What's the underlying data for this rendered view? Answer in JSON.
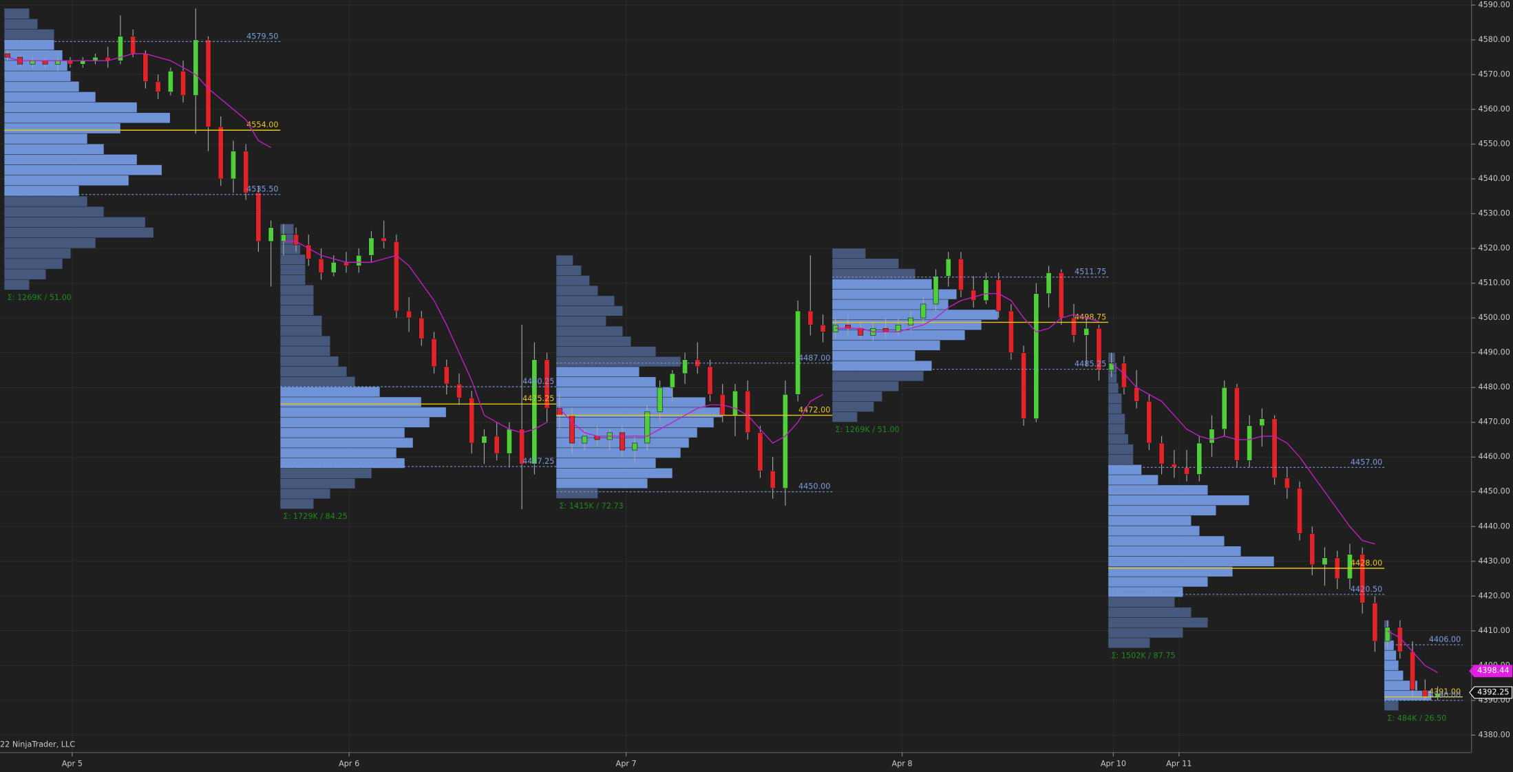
{
  "chart_data": {
    "type": "candlestick",
    "copyright": "22 NinjaTrader, LLC",
    "xlim": [
      -0.6,
      116.7
    ],
    "ylim": [
      4375,
      4591.4
    ],
    "yticks": [
      {
        "value": 4380,
        "label": "4380.00"
      },
      {
        "value": 4390,
        "label": "4390.00"
      },
      {
        "value": 4400,
        "label": "4400.00"
      },
      {
        "value": 4410,
        "label": "4410.00"
      },
      {
        "value": 4420,
        "label": "4420.00"
      },
      {
        "value": 4430,
        "label": "4430.00"
      },
      {
        "value": 4440,
        "label": "4440.00"
      },
      {
        "value": 4450,
        "label": "4450.00"
      },
      {
        "value": 4460,
        "label": "4460.00"
      },
      {
        "value": 4470,
        "label": "4470.00"
      },
      {
        "value": 4480,
        "label": "4480.00"
      },
      {
        "value": 4490,
        "label": "4490.00"
      },
      {
        "value": 4500,
        "label": "4500.00"
      },
      {
        "value": 4510,
        "label": "4510.00"
      },
      {
        "value": 4520,
        "label": "4520.00"
      },
      {
        "value": 4530,
        "label": "4530.00"
      },
      {
        "value": 4540,
        "label": "4540.00"
      },
      {
        "value": 4550,
        "label": "4550.00"
      },
      {
        "value": 4560,
        "label": "4560.00"
      },
      {
        "value": 4570,
        "label": "4570.00"
      },
      {
        "value": 4580,
        "label": "4580.00"
      },
      {
        "value": 4590,
        "label": "4590.00"
      }
    ],
    "xticks": [
      {
        "value": 5.15,
        "label": "Apr 5"
      },
      {
        "value": 27.23,
        "label": "Apr 6"
      },
      {
        "value": 49.31,
        "label": "Apr 7"
      },
      {
        "value": 71.31,
        "label": "Apr 8"
      },
      {
        "value": 88.15,
        "label": "Apr 10"
      },
      {
        "value": 93.38,
        "label": "Apr 11"
      }
    ],
    "grid": true,
    "up_color": "#4fcf3a",
    "down_color": "#e0242a",
    "wick_color": "#a8a8a8",
    "candles": [
      [
        4576,
        4577,
        4574,
        4575
      ],
      [
        4575,
        4576,
        4572,
        4573
      ],
      [
        4573,
        4575,
        4572,
        4574
      ],
      [
        4574,
        4575,
        4572,
        4573
      ],
      [
        4573,
        4575,
        4571,
        4574
      ],
      [
        4574,
        4575,
        4572,
        4573
      ],
      [
        4573,
        4575,
        4572,
        4574
      ],
      [
        4574,
        4576,
        4573,
        4575
      ],
      [
        4575,
        4578,
        4572,
        4574
      ],
      [
        4574,
        4587,
        4573,
        4581
      ],
      [
        4581,
        4583,
        4575,
        4576
      ],
      [
        4576,
        4577,
        4566,
        4568
      ],
      [
        4568,
        4570,
        4563,
        4565
      ],
      [
        4565,
        4572,
        4564,
        4571
      ],
      [
        4571,
        4574,
        4562,
        4564
      ],
      [
        4564,
        4589,
        4553,
        4580
      ],
      [
        4580,
        4581,
        4548,
        4555
      ],
      [
        4555,
        4558,
        4538,
        4540
      ],
      [
        4540,
        4551,
        4536,
        4548
      ],
      [
        4548,
        4550,
        4534,
        4536
      ],
      [
        4536,
        4538,
        4519,
        4522
      ],
      [
        4522,
        4528,
        4509,
        4526
      ],
      [
        4522,
        4527,
        4518,
        4524
      ],
      [
        4524,
        4526,
        4519,
        4521
      ],
      [
        4521,
        4524,
        4515,
        4517
      ],
      [
        4517,
        4520,
        4511,
        4513
      ],
      [
        4513,
        4518,
        4512,
        4516
      ],
      [
        4516,
        4519,
        4513,
        4515
      ],
      [
        4515,
        4520,
        4513,
        4518
      ],
      [
        4518,
        4525,
        4516,
        4523
      ],
      [
        4523,
        4528,
        4520,
        4522
      ],
      [
        4522,
        4524,
        4500,
        4502
      ],
      [
        4502,
        4506,
        4496,
        4500
      ],
      [
        4500,
        4502,
        4492,
        4494
      ],
      [
        4494,
        4496,
        4484,
        4486
      ],
      [
        4486,
        4488,
        4478,
        4481
      ],
      [
        4481,
        4484,
        4475,
        4477
      ],
      [
        4477,
        4479,
        4461,
        4464
      ],
      [
        4464,
        4468,
        4458,
        4466
      ],
      [
        4466,
        4470,
        4459,
        4461
      ],
      [
        4461,
        4470,
        4457,
        4468
      ],
      [
        4468,
        4498,
        4445,
        4458
      ],
      [
        4458,
        4493,
        4455,
        4488
      ],
      [
        4488,
        4490,
        4470,
        4474
      ],
      [
        4474,
        4478,
        4468,
        4472
      ],
      [
        4472,
        4474,
        4461,
        4464
      ],
      [
        4464,
        4468,
        4462,
        4466
      ],
      [
        4466,
        4469,
        4463,
        4465
      ],
      [
        4465,
        4468,
        4462,
        4467
      ],
      [
        4467,
        4469,
        4460,
        4462
      ],
      [
        4462,
        4466,
        4458,
        4464
      ],
      [
        4464,
        4475,
        4462,
        4473
      ],
      [
        4473,
        4482,
        4470,
        4480
      ],
      [
        4480,
        4485,
        4476,
        4484
      ],
      [
        4484,
        4490,
        4481,
        4488
      ],
      [
        4488,
        4493,
        4484,
        4486
      ],
      [
        4486,
        4488,
        4476,
        4478
      ],
      [
        4478,
        4481,
        4470,
        4472
      ],
      [
        4472,
        4481,
        4466,
        4479
      ],
      [
        4479,
        4482,
        4465,
        4467
      ],
      [
        4467,
        4469,
        4454,
        4456
      ],
      [
        4456,
        4460,
        4448,
        4451
      ],
      [
        4451,
        4482,
        4446,
        4478
      ],
      [
        4478,
        4505,
        4476,
        4502
      ],
      [
        4502,
        4518,
        4495,
        4498
      ],
      [
        4498,
        4501,
        4493,
        4496
      ],
      [
        4496,
        4500,
        4494,
        4498
      ],
      [
        4498,
        4501,
        4495,
        4497
      ],
      [
        4497,
        4499,
        4494,
        4495
      ],
      [
        4495,
        4499,
        4493,
        4497
      ],
      [
        4497,
        4500,
        4494,
        4496
      ],
      [
        4496,
        4500,
        4495,
        4498
      ],
      [
        4498,
        4502,
        4496,
        4500
      ],
      [
        4500,
        4506,
        4498,
        4504
      ],
      [
        4504,
        4514,
        4502,
        4512
      ],
      [
        4512,
        4519,
        4509,
        4517
      ],
      [
        4517,
        4519,
        4506,
        4508
      ],
      [
        4508,
        4512,
        4503,
        4505
      ],
      [
        4505,
        4513,
        4504,
        4511
      ],
      [
        4511,
        4513,
        4500,
        4502
      ],
      [
        4502,
        4504,
        4488,
        4490
      ],
      [
        4490,
        4492,
        4469,
        4471
      ],
      [
        4471,
        4510,
        4470,
        4507
      ],
      [
        4507,
        4515,
        4503,
        4513
      ],
      [
        4513,
        4514,
        4498,
        4500
      ],
      [
        4500,
        4504,
        4493,
        4495
      ],
      [
        4495,
        4500,
        4486,
        4497
      ],
      [
        4497,
        4498,
        4482,
        4485
      ],
      [
        4485,
        4490,
        4483,
        4487
      ],
      [
        4487,
        4489,
        4478,
        4480
      ],
      [
        4480,
        4485,
        4474,
        4476
      ],
      [
        4476,
        4478,
        4462,
        4464
      ],
      [
        4464,
        4466,
        4455,
        4458
      ],
      [
        4458,
        4462,
        4454,
        4457
      ],
      [
        4457,
        4462,
        4453,
        4455
      ],
      [
        4455,
        4466,
        4453,
        4464
      ],
      [
        4464,
        4472,
        4460,
        4468
      ],
      [
        4468,
        4482,
        4466,
        4480
      ],
      [
        4480,
        4481,
        4457,
        4459
      ],
      [
        4459,
        4472,
        4457,
        4469
      ],
      [
        4469,
        4474,
        4463,
        4471
      ],
      [
        4471,
        4472,
        4452,
        4454
      ],
      [
        4454,
        4457,
        4448,
        4451
      ],
      [
        4451,
        4453,
        4436,
        4438
      ],
      [
        4438,
        4440,
        4426,
        4429
      ],
      [
        4429,
        4434,
        4423,
        4431
      ],
      [
        4431,
        4433,
        4422,
        4425
      ],
      [
        4425,
        4435,
        4422,
        4432
      ],
      [
        4432,
        4434,
        4415,
        4418
      ],
      [
        4418,
        4420,
        4404,
        4407
      ],
      [
        4407,
        4413,
        4405,
        4411
      ],
      [
        4411,
        4413,
        4402,
        4404
      ],
      [
        4404,
        4407,
        4391,
        4393
      ],
      [
        4393,
        4396,
        4390,
        4391
      ],
      [
        4391,
        4394,
        4390,
        4392
      ]
    ],
    "ma_color": "#c21fc2",
    "ma": [
      {
        "start": 0,
        "values": [
          4575,
          4574,
          4574,
          4574,
          4574,
          4574,
          4574,
          4574,
          4574,
          4575,
          4576,
          4576,
          4575,
          4574,
          4572,
          4570,
          4566,
          4563,
          4560,
          4557,
          4551,
          4549
        ]
      },
      {
        "start": 22,
        "values": [
          4522,
          4522,
          4520,
          4518,
          4517,
          4516,
          4516,
          4516,
          4517,
          4518,
          4515,
          4510,
          4505,
          4498,
          4490,
          4482,
          4472,
          4470,
          4468,
          4467,
          4468,
          4470
        ]
      },
      {
        "start": 44,
        "values": [
          4474,
          4470,
          4467,
          4466,
          4466,
          4466,
          4466,
          4466,
          4468,
          4470,
          4472,
          4474,
          4475,
          4475,
          4474,
          4472,
          4468,
          4464,
          4466,
          4470,
          4476,
          4478
        ]
      },
      {
        "start": 66,
        "values": [
          4497,
          4497,
          4497,
          4496,
          4496,
          4496,
          4497,
          4498,
          4500,
          4503,
          4505,
          4506,
          4507,
          4507,
          4505,
          4500,
          4496,
          4497,
          4500,
          4501,
          4500,
          4499
        ]
      },
      {
        "start": 88,
        "values": [
          4487,
          4484,
          4480,
          4478,
          4476,
          4472,
          4468,
          4466,
          4465,
          4466,
          4465,
          4465,
          4466,
          4466,
          4464,
          4460,
          4455,
          4450,
          4445,
          4440,
          4436,
          4435
        ]
      },
      {
        "start": 110,
        "values": [
          4410,
          4408,
          4404,
          4400,
          4398
        ]
      }
    ],
    "profile_colors": {
      "value_area": "#6f93d6",
      "outside": "#46587c",
      "va_line": "#7a9be0",
      "poc_line": "#e8c41c",
      "summary": "#1f8a1f"
    },
    "profiles": [
      {
        "start": -0.25,
        "end": 21.75,
        "low": 4508,
        "high": 4589,
        "values": [
          15,
          25,
          35,
          40,
          55,
          90,
          85,
          60,
          50,
          45,
          75,
          95,
          80,
          60,
          50,
          70,
          100,
          80,
          55,
          45,
          40,
          38,
          35,
          30,
          30,
          20,
          15
        ],
        "vah": {
          "value": 4579.5,
          "label": "4579.50"
        },
        "poc": {
          "value": 4554,
          "label": "4554.00"
        },
        "val": {
          "value": 4535.5,
          "label": "4535.50"
        },
        "summary": "Σ: 1269K / 51.00"
      },
      {
        "start": 21.75,
        "end": 43.75,
        "low": 4445,
        "high": 4527,
        "values": [
          20,
          30,
          45,
          55,
          75,
          70,
          80,
          75,
          90,
          100,
          85,
          60,
          45,
          40,
          35,
          30,
          30,
          25,
          25,
          20,
          20,
          20,
          15,
          15,
          15,
          12,
          10,
          8
        ],
        "vah": {
          "value": 4480.25,
          "label": "4480.25"
        },
        "poc": {
          "value": 4475.25,
          "label": "4475.25"
        },
        "val": {
          "value": 4457.25,
          "label": "4457.25"
        },
        "summary": "Σ: 1729K / 84.25"
      },
      {
        "start": 43.75,
        "end": 65.75,
        "low": 4448,
        "high": 4518,
        "values": [
          25,
          55,
          70,
          60,
          75,
          80,
          85,
          95,
          100,
          90,
          70,
          60,
          50,
          75,
          60,
          45,
          40,
          30,
          40,
          35,
          25,
          20,
          15,
          10
        ],
        "vah": {
          "value": 4487,
          "label": "4487.00"
        },
        "poc": {
          "value": 4472,
          "label": "4472.00"
        },
        "val": {
          "value": 4450,
          "label": "4450.00"
        },
        "summary": "Σ: 1415K / 72.73"
      },
      {
        "start": 65.75,
        "end": 87.75,
        "low": 4470,
        "high": 4520,
        "values": [
          15,
          25,
          30,
          40,
          55,
          60,
          50,
          65,
          80,
          90,
          100,
          70,
          75,
          60,
          50,
          40,
          20
        ],
        "vah": {
          "value": 4511.75,
          "label": "4511.75"
        },
        "poc": {
          "value": 4498.75,
          "label": "4498.75"
        },
        "val": {
          "value": 4485.25,
          "label": "4485.25"
        },
        "summary": "Σ: 1269K / 51.00"
      },
      {
        "start": 87.75,
        "end": 109.75,
        "low": 4405,
        "high": 4490,
        "values": [
          25,
          45,
          60,
          50,
          40,
          45,
          60,
          75,
          100,
          80,
          70,
          55,
          50,
          65,
          85,
          60,
          30,
          20,
          15,
          15,
          12,
          10,
          10,
          8,
          8,
          6,
          5,
          5,
          4
        ],
        "vah": {
          "value": 4457,
          "label": "4457.00"
        },
        "poc": {
          "value": 4428,
          "label": "4428.00"
        },
        "val": {
          "value": 4420.5,
          "label": "4420.50"
        },
        "summary": "Σ: 1502K / 87.75"
      },
      {
        "start": 109.75,
        "end": 116,
        "low": 4387,
        "high": 4413,
        "values": [
          30,
          100,
          70,
          40,
          30,
          25,
          20,
          15,
          10
        ],
        "vah": {
          "value": 4406,
          "label": "4406.00"
        },
        "poc": {
          "value": 4391,
          "label": "4391.00"
        },
        "val": {
          "value": 4390,
          "label": "4390.00"
        },
        "summary": "Σ: 484K / 26.50"
      }
    ],
    "price_tags": [
      {
        "value": 4398.44,
        "label": "4398.44",
        "fill": "#e020e0",
        "stroke": "#e020e0",
        "text": "#ffffff"
      },
      {
        "value": 4392.25,
        "label": "4392.25",
        "fill": "#111111",
        "stroke": "#ffffff",
        "text": "#ffffff"
      }
    ]
  }
}
